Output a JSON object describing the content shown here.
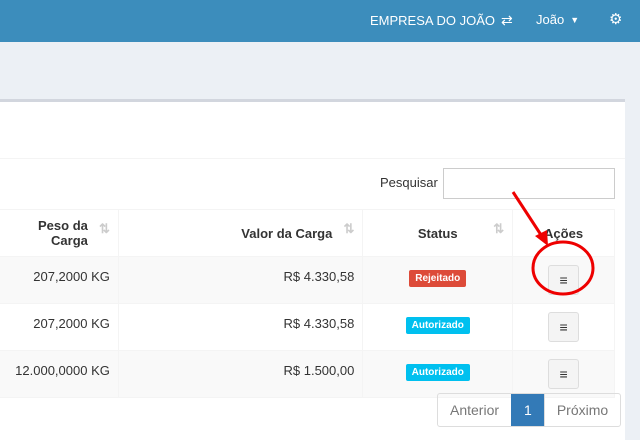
{
  "topbar": {
    "company": "EMPRESA DO JOÃO",
    "company_icon": "exchange-icon",
    "user": "João",
    "user_icon": "caret-down-icon",
    "settings_icon": "cogs-icon"
  },
  "search": {
    "label": "Pesquisar",
    "value": ""
  },
  "table": {
    "headers": [
      "Peso da Carga",
      "Valor da Carga",
      "Status",
      "Ações"
    ],
    "rows": [
      {
        "peso": "207,2000 KG",
        "valor": "R$ 4.330,58",
        "status": "Rejeitado",
        "status_color": "#dd4b39"
      },
      {
        "peso": "207,2000 KG",
        "valor": "R$ 4.330,58",
        "status": "Autorizado",
        "status_color": "#00c0ef"
      },
      {
        "peso": "12.000,0000 KG",
        "valor": "R$ 1.500,00",
        "status": "Autorizado",
        "status_color": "#00c0ef"
      }
    ],
    "action_icon": "menu-icon"
  },
  "pagination": {
    "prev": "Anterior",
    "current": "1",
    "next": "Próximo"
  },
  "annotation": {
    "color": "#ee0000"
  }
}
